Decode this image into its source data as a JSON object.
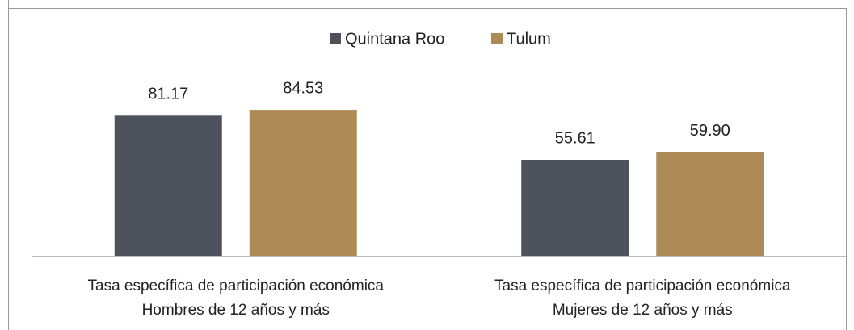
{
  "chart_data": {
    "type": "bar",
    "categories": [
      "Tasa específica de participación económica\nHombres de 12 años y más",
      "Tasa específica de participación económica\nMujeres de 12 años y más"
    ],
    "series": [
      {
        "name": "Quintana Roo",
        "color": "#4d525c",
        "values": [
          81.17,
          55.61
        ]
      },
      {
        "name": "Tulum",
        "color": "#ae8a57",
        "values": [
          84.53,
          59.9
        ],
        "value_labels": [
          "84.53",
          "59.90"
        ]
      }
    ],
    "ylim": [
      0,
      100
    ],
    "legend": "top"
  }
}
